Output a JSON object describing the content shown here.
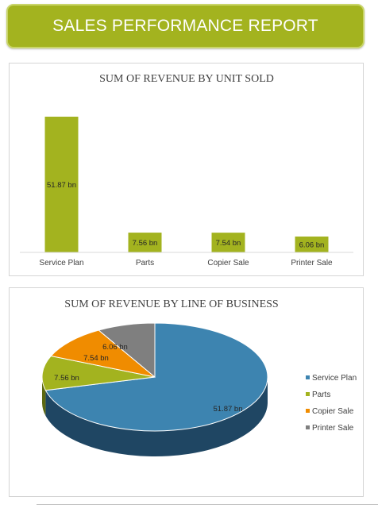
{
  "header": {
    "title": "SALES PERFORMANCE REPORT"
  },
  "colors": {
    "banner": "#a3b31f",
    "bar": "#a3b31f",
    "pie": [
      "#3d84b0",
      "#a3b31f",
      "#f08c00",
      "#7f7f7f"
    ]
  },
  "chart_data": [
    {
      "type": "bar",
      "title": "SUM OF REVENUE BY UNIT SOLD",
      "categories": [
        "Service Plan",
        "Parts",
        "Copier Sale",
        "Printer Sale"
      ],
      "values": [
        51.87,
        7.56,
        7.54,
        6.06
      ],
      "value_labels": [
        "51.87 bn",
        "7.56 bn",
        "7.54 bn",
        "6.06 bn"
      ],
      "ylim": [
        0,
        51.87
      ],
      "grid": false
    },
    {
      "type": "pie",
      "title": "SUM OF REVENUE BY LINE OF BUSINESS",
      "categories": [
        "Service Plan",
        "Parts",
        "Copier Sale",
        "Printer Sale"
      ],
      "values": [
        51.87,
        7.56,
        7.54,
        6.06
      ],
      "value_labels": [
        "51.87 bn",
        "7.56 bn",
        "7.54 bn",
        "6.06 bn"
      ],
      "legend": "right"
    }
  ]
}
